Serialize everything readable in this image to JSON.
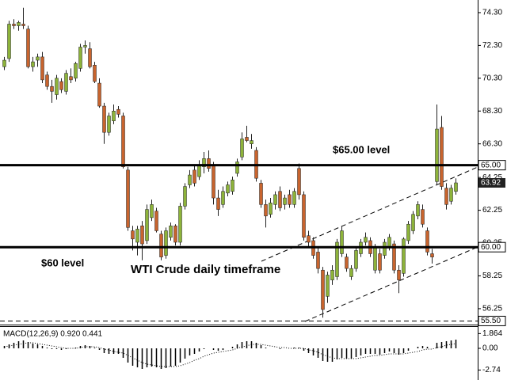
{
  "chart_data": [
    {
      "type": "candlestick",
      "up_color": "#8db33a",
      "down_color": "#c8642e",
      "wick_color": "#222222",
      "open": [
        71.0,
        71.5,
        73.6,
        73.5,
        73.6,
        73.3,
        71.0,
        71.4,
        71.6,
        70.5,
        69.8,
        69.3,
        70.1,
        69.5,
        70.4,
        70.3,
        70.9,
        72.2,
        72.1,
        71.1,
        70.0,
        68.6,
        67.0,
        67.7,
        68.4,
        68.0,
        64.7,
        61.0,
        60.3,
        61.3,
        60.4,
        61.8,
        62.2,
        60.8,
        59.5,
        60.6,
        61.3,
        60.3,
        62.5,
        63.8,
        64.7,
        64.3,
        64.9,
        65.4,
        65.0,
        63.0,
        62.6,
        63.3,
        63.4,
        64.5,
        65.5,
        66.7,
        66.3,
        65.9,
        63.9,
        62.6,
        62.0,
        62.6,
        63.4,
        62.6,
        63.2,
        62.6,
        64.8,
        63.2,
        60.7,
        60.4,
        59.7,
        58.6,
        57.0,
        58.0,
        58.2,
        59.6,
        59.4,
        58.2,
        58.7,
        59.6,
        60.3,
        60.4,
        58.6,
        59.6,
        59.5,
        60.0,
        60.2,
        58.6,
        58.4,
        60.4,
        61.0,
        61.9,
        62.3,
        61.0,
        59.6,
        64.0,
        67.3,
        63.6,
        62.8,
        63.4
      ],
      "high": [
        71.6,
        73.8,
        73.9,
        73.8,
        74.6,
        73.5,
        71.6,
        71.8,
        71.9,
        70.7,
        70.2,
        70.5,
        70.3,
        70.8,
        70.9,
        71.3,
        72.4,
        72.6,
        72.5,
        71.3,
        70.3,
        68.8,
        68.2,
        68.7,
        68.6,
        68.2,
        64.9,
        61.3,
        61.3,
        61.6,
        62.6,
        62.9,
        62.4,
        61.0,
        61.2,
        61.5,
        61.4,
        62.7,
        63.9,
        64.7,
        65.0,
        65.3,
        65.8,
        65.9,
        65.2,
        63.5,
        63.7,
        64.0,
        64.3,
        65.4,
        67.0,
        67.4,
        66.9,
        66.1,
        64.1,
        62.9,
        63.0,
        63.4,
        63.7,
        63.2,
        63.5,
        63.6,
        65.1,
        63.4,
        61.0,
        60.6,
        60.0,
        58.8,
        58.5,
        58.9,
        60.5,
        61.3,
        59.6,
        58.9,
        60.0,
        60.5,
        60.9,
        60.6,
        60.2,
        59.9,
        60.5,
        60.8,
        60.4,
        58.9,
        60.6,
        61.6,
        62.2,
        62.8,
        62.6,
        61.2,
        59.9,
        68.7,
        68.0,
        63.9,
        63.8,
        64.2
      ],
      "low": [
        70.8,
        71.3,
        73.3,
        73.2,
        73.3,
        70.9,
        70.7,
        71.0,
        70.0,
        69.6,
        68.8,
        69.0,
        69.4,
        69.3,
        70.0,
        70.1,
        70.7,
        71.8,
        70.9,
        70.0,
        68.5,
        66.3,
        66.8,
        67.5,
        67.9,
        64.8,
        61.0,
        59.8,
        59.5,
        59.2,
        60.2,
        61.6,
        60.9,
        59.2,
        59.3,
        60.4,
        60.1,
        60.1,
        62.3,
        63.6,
        63.7,
        64.1,
        64.5,
        64.6,
        62.6,
        61.9,
        62.4,
        63.1,
        63.2,
        64.3,
        65.3,
        66.4,
        66.0,
        64.0,
        62.4,
        61.2,
        61.8,
        62.3,
        62.2,
        62.3,
        62.4,
        62.4,
        62.9,
        60.4,
        60.0,
        59.3,
        58.4,
        55.7,
        56.6,
        57.7,
        58.0,
        59.4,
        58.5,
        58.0,
        58.5,
        59.4,
        60.1,
        59.4,
        58.4,
        58.4,
        59.3,
        59.8,
        58.4,
        57.2,
        58.2,
        60.2,
        60.8,
        61.7,
        61.2,
        59.5,
        59.0,
        63.8,
        63.5,
        62.3,
        62.6,
        63.2
      ],
      "close": [
        71.4,
        73.6,
        73.5,
        73.7,
        73.5,
        71.0,
        71.3,
        71.6,
        70.2,
        69.8,
        69.5,
        70.3,
        69.6,
        70.6,
        70.2,
        71.2,
        72.2,
        72.3,
        71.0,
        70.1,
        68.6,
        67.0,
        68.0,
        68.3,
        68.1,
        64.9,
        61.2,
        60.5,
        61.1,
        60.2,
        62.3,
        62.6,
        61.0,
        59.4,
        61.0,
        61.3,
        60.3,
        62.5,
        63.7,
        64.4,
        63.9,
        65.0,
        65.4,
        64.8,
        63.0,
        62.3,
        63.4,
        63.8,
        64.1,
        65.2,
        66.6,
        66.5,
        66.5,
        64.2,
        62.6,
        61.9,
        62.7,
        63.2,
        62.4,
        63.0,
        62.6,
        63.4,
        63.2,
        60.6,
        60.3,
        59.5,
        58.7,
        56.2,
        58.3,
        58.6,
        60.3,
        61.0,
        58.7,
        58.7,
        59.8,
        60.3,
        60.6,
        59.6,
        60.0,
        58.6,
        60.3,
        60.6,
        58.6,
        58.0,
        60.5,
        61.4,
        62.0,
        62.6,
        61.4,
        59.7,
        59.4,
        67.2,
        63.7,
        62.6,
        63.6,
        63.92
      ],
      "ylim": [
        55.28,
        75.07
      ],
      "yticks": [
        {
          "value": 74.3,
          "label": "74.30"
        },
        {
          "value": 72.3,
          "label": "72.30"
        },
        {
          "value": 70.3,
          "label": "70.30"
        },
        {
          "value": 68.3,
          "label": "68.30"
        },
        {
          "value": 66.3,
          "label": "66.30"
        },
        64.25,
        62.25,
        60.25,
        58.25,
        56.25
      ],
      "levels": [
        {
          "value": 65,
          "label": "65.00",
          "line": "solid"
        },
        {
          "value": 60,
          "label": "60.00",
          "line": "solid"
        },
        {
          "value": 55.5,
          "label": "55.50",
          "line": "dashed"
        }
      ],
      "last_price": {
        "value": 63.92,
        "label": "63.92"
      },
      "annotations": [
        "$65.00 level",
        "$60 level",
        "WTI Crude daily timeframe"
      ]
    },
    {
      "type": "macd",
      "title": "MACD(12,26,9) 0.920 0.441",
      "histogram": [
        0.3,
        0.5,
        0.7,
        0.9,
        1.0,
        0.8,
        0.6,
        0.5,
        0.3,
        0.1,
        -0.1,
        -0.1,
        -0.2,
        -0.1,
        0.0,
        0.1,
        0.3,
        0.4,
        0.3,
        0.1,
        -0.2,
        -0.6,
        -0.7,
        -0.7,
        -0.7,
        -1.2,
        -1.8,
        -2.2,
        -2.4,
        -2.6,
        -2.4,
        -2.3,
        -2.4,
        -2.6,
        -2.5,
        -2.3,
        -2.2,
        -1.8,
        -1.3,
        -0.9,
        -0.7,
        -0.4,
        -0.1,
        0.0,
        -0.2,
        -0.3,
        -0.2,
        0.0,
        0.2,
        0.5,
        0.8,
        0.9,
        0.9,
        0.7,
        0.4,
        0.1,
        0.0,
        0.0,
        -0.1,
        0.0,
        0.0,
        0.1,
        0.1,
        -0.3,
        -0.6,
        -0.9,
        -1.2,
        -1.6,
        -1.7,
        -1.7,
        -1.4,
        -1.2,
        -1.3,
        -1.3,
        -1.1,
        -0.9,
        -0.7,
        -0.7,
        -0.7,
        -0.8,
        -0.6,
        -0.4,
        -0.6,
        -0.8,
        -0.6,
        -0.3,
        0.0,
        0.2,
        0.3,
        0.2,
        0.0,
        0.7,
        0.8,
        0.9,
        1.0,
        1.1
      ],
      "signal": [
        0.2,
        0.3,
        0.4,
        0.5,
        0.6,
        0.7,
        0.7,
        0.6,
        0.5,
        0.4,
        0.3,
        0.2,
        0.1,
        0.0,
        0.0,
        0.0,
        0.1,
        0.2,
        0.2,
        0.2,
        0.1,
        -0.1,
        -0.2,
        -0.4,
        -0.5,
        -0.6,
        -0.9,
        -1.2,
        -1.5,
        -1.8,
        -2.0,
        -2.1,
        -2.2,
        -2.3,
        -2.3,
        -2.3,
        -2.3,
        -2.2,
        -2.0,
        -1.8,
        -1.5,
        -1.3,
        -1.0,
        -0.8,
        -0.6,
        -0.5,
        -0.4,
        -0.3,
        -0.2,
        0.0,
        0.2,
        0.3,
        0.5,
        0.5,
        0.5,
        0.4,
        0.3,
        0.2,
        0.1,
        0.1,
        0.0,
        0.0,
        0.0,
        0.0,
        -0.2,
        -0.3,
        -0.5,
        -0.8,
        -1.0,
        -1.2,
        -1.3,
        -1.3,
        -1.3,
        -1.3,
        -1.3,
        -1.2,
        -1.1,
        -1.0,
        -0.9,
        -0.9,
        -0.8,
        -0.7,
        -0.7,
        -0.7,
        -0.7,
        -0.6,
        -0.5,
        -0.4,
        -0.2,
        -0.1,
        -0.1,
        0.1,
        0.2,
        0.4,
        0.5,
        0.6
      ],
      "ylim": [
        -3.8,
        2.8
      ],
      "yticks": [
        1.864,
        {
          "value": 0,
          "label": "0.00"
        },
        -2.74
      ]
    }
  ]
}
